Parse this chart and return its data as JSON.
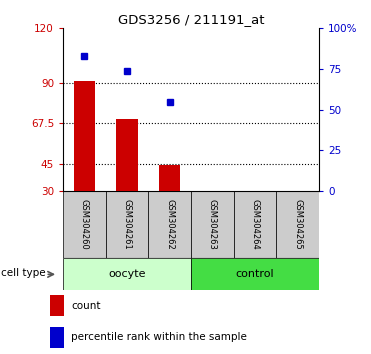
{
  "title": "GDS3256 / 211191_at",
  "samples": [
    "GSM304260",
    "GSM304261",
    "GSM304262",
    "GSM304263",
    "GSM304264",
    "GSM304265"
  ],
  "bar_values": [
    91.0,
    70.0,
    44.5,
    0,
    0,
    0
  ],
  "dot_values_pct": [
    83.0,
    74.0,
    55.0,
    null,
    null,
    null
  ],
  "ylim": [
    30,
    120
  ],
  "y_ticks": [
    30,
    45,
    67.5,
    90,
    120
  ],
  "y_tick_labels": [
    "30",
    "45",
    "67.5",
    "90",
    "120"
  ],
  "right_yticks": [
    0,
    25,
    50,
    75,
    100
  ],
  "right_ytick_labels": [
    "0",
    "25",
    "50",
    "75",
    "100%"
  ],
  "left_tick_color": "#CC0000",
  "right_tick_color": "#0000CC",
  "bar_color": "#CC0000",
  "dot_color": "#0000CC",
  "bar_width": 0.5,
  "bar_bottom": 30,
  "oocyte_light": "#CCFFCC",
  "control_green": "#44DD44",
  "sample_box_color": "#CCCCCC"
}
